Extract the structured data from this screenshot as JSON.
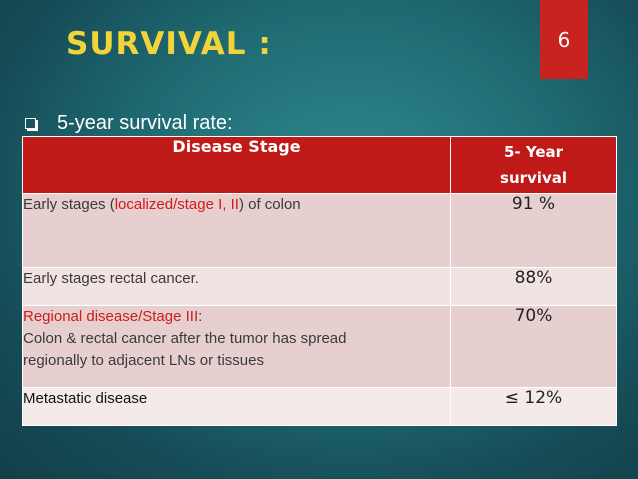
{
  "slide": {
    "title": "SURVIVAL :",
    "page_number": "6",
    "bullet_text": "5-year survival rate:"
  },
  "table": {
    "headers": {
      "stage": "Disease Stage",
      "survival_line1": "5- Year",
      "survival_line2": "survival"
    },
    "rows": [
      {
        "stage_prefix": "Early stages (",
        "stage_highlight": "localized/stage I, II",
        "stage_suffix": ") of colon",
        "value": "91 %"
      },
      {
        "stage": "Early stages rectal cancer.",
        "value": "88%"
      },
      {
        "stage_highlight": "Regional disease/Stage III",
        "stage_colon": ":",
        "stage_detail_line1": "Colon & rectal cancer after the tumor has spread",
        "stage_detail_line2": "regionally to adjacent LNs or tissues",
        "value": "70%"
      },
      {
        "stage": "Metastatic disease",
        "value": "≤ 12%"
      }
    ]
  },
  "colors": {
    "title": "#f1d33a",
    "header_bg": "#c01a18",
    "page_number_bg": "#c9231f",
    "highlight_text": "#d11a1a"
  }
}
